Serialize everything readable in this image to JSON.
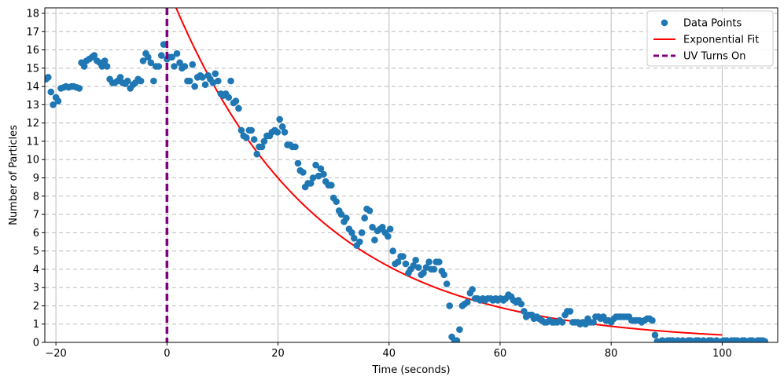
{
  "chart_data": {
    "type": "scatter",
    "title": "",
    "xlabel": "Time (seconds)",
    "ylabel": "Number of Particles",
    "xlim": [
      -22,
      110
    ],
    "ylim": [
      0,
      18.3
    ],
    "xticks": [
      -20,
      0,
      20,
      40,
      60,
      80,
      100
    ],
    "xtick_labels": [
      "−20",
      "0",
      "20",
      "40",
      "60",
      "80",
      "100"
    ],
    "yticks": [
      0,
      1,
      2,
      3,
      4,
      5,
      6,
      7,
      8,
      9,
      10,
      11,
      12,
      13,
      14,
      15,
      16,
      17,
      18
    ],
    "grid": {
      "x": "solid-major",
      "y": "dashed"
    },
    "legend": {
      "placement": "top-right",
      "entries": [
        {
          "label": "Data Points",
          "kind": "marker",
          "color": "#1f77b4"
        },
        {
          "label": "Exponential Fit",
          "kind": "line",
          "color": "#ff0000"
        },
        {
          "label": "UV Turns On",
          "kind": "dashed-line",
          "color": "#800080"
        }
      ]
    },
    "series": [
      {
        "name": "Data Points",
        "type": "scatter",
        "color": "#1f77b4",
        "points": [
          [
            -21.8,
            14.4
          ],
          [
            -21.4,
            14.5
          ],
          [
            -20.9,
            13.7
          ],
          [
            -20.5,
            13.0
          ],
          [
            -20.0,
            13.4
          ],
          [
            -19.6,
            13.2
          ],
          [
            -19.1,
            13.9
          ],
          [
            -18.6,
            13.95
          ],
          [
            -18.2,
            14.0
          ],
          [
            -17.7,
            13.95
          ],
          [
            -17.2,
            14.0
          ],
          [
            -16.8,
            14.0
          ],
          [
            -16.3,
            13.95
          ],
          [
            -15.8,
            13.9
          ],
          [
            -15.4,
            15.3
          ],
          [
            -14.9,
            15.1
          ],
          [
            -14.5,
            15.4
          ],
          [
            -14.0,
            15.5
          ],
          [
            -13.5,
            15.6
          ],
          [
            -13.1,
            15.7
          ],
          [
            -12.6,
            15.4
          ],
          [
            -12.1,
            15.3
          ],
          [
            -11.7,
            15.1
          ],
          [
            -11.2,
            15.4
          ],
          [
            -10.8,
            15.1
          ],
          [
            -10.3,
            14.4
          ],
          [
            -9.8,
            14.2
          ],
          [
            -9.4,
            14.2
          ],
          [
            -8.9,
            14.3
          ],
          [
            -8.4,
            14.5
          ],
          [
            -8.0,
            14.2
          ],
          [
            -7.5,
            14.15
          ],
          [
            -7.1,
            14.3
          ],
          [
            -6.6,
            13.9
          ],
          [
            -6.1,
            14.1
          ],
          [
            -5.7,
            14.2
          ],
          [
            -5.2,
            14.4
          ],
          [
            -4.7,
            14.3
          ],
          [
            -4.3,
            15.4
          ],
          [
            -3.8,
            15.8
          ],
          [
            -3.4,
            15.6
          ],
          [
            -2.9,
            15.3
          ],
          [
            -2.4,
            14.3
          ],
          [
            -2.0,
            15.1
          ],
          [
            -1.5,
            15.1
          ],
          [
            -1.0,
            15.7
          ],
          [
            -0.6,
            16.3
          ],
          [
            0.0,
            15.5
          ],
          [
            0.4,
            15.6
          ],
          [
            0.9,
            15.6
          ],
          [
            1.3,
            15.1
          ],
          [
            1.8,
            15.8
          ],
          [
            2.3,
            15.3
          ],
          [
            2.7,
            15.0
          ],
          [
            3.2,
            15.1
          ],
          [
            3.7,
            14.3
          ],
          [
            4.1,
            14.3
          ],
          [
            4.6,
            15.2
          ],
          [
            5.0,
            14.0
          ],
          [
            5.5,
            14.5
          ],
          [
            6.0,
            14.6
          ],
          [
            6.4,
            14.5
          ],
          [
            6.9,
            14.1
          ],
          [
            7.4,
            14.6
          ],
          [
            7.8,
            14.4
          ],
          [
            8.3,
            14.2
          ],
          [
            8.7,
            14.7
          ],
          [
            9.2,
            14.3
          ],
          [
            9.7,
            13.6
          ],
          [
            10.1,
            13.5
          ],
          [
            10.6,
            13.6
          ],
          [
            11.1,
            13.4
          ],
          [
            11.5,
            14.3
          ],
          [
            12.0,
            13.1
          ],
          [
            12.4,
            13.2
          ],
          [
            12.9,
            12.8
          ],
          [
            13.4,
            11.6
          ],
          [
            13.8,
            11.3
          ],
          [
            14.3,
            11.2
          ],
          [
            14.8,
            11.6
          ],
          [
            15.2,
            11.6
          ],
          [
            15.7,
            11.1
          ],
          [
            16.2,
            10.3
          ],
          [
            16.6,
            10.7
          ],
          [
            17.1,
            10.7
          ],
          [
            17.5,
            11.0
          ],
          [
            18.0,
            11.3
          ],
          [
            18.5,
            11.3
          ],
          [
            18.9,
            11.5
          ],
          [
            19.4,
            11.6
          ],
          [
            19.9,
            11.5
          ],
          [
            20.3,
            12.2
          ],
          [
            20.8,
            11.8
          ],
          [
            21.2,
            11.5
          ],
          [
            21.7,
            10.8
          ],
          [
            22.2,
            10.8
          ],
          [
            22.6,
            10.7
          ],
          [
            23.1,
            10.7
          ],
          [
            23.6,
            9.8
          ],
          [
            24.0,
            9.4
          ],
          [
            24.5,
            9.3
          ],
          [
            24.9,
            8.5
          ],
          [
            25.4,
            8.7
          ],
          [
            25.9,
            8.7
          ],
          [
            26.3,
            9.0
          ],
          [
            26.8,
            9.7
          ],
          [
            27.3,
            9.1
          ],
          [
            27.7,
            9.5
          ],
          [
            28.2,
            9.2
          ],
          [
            28.6,
            8.8
          ],
          [
            29.1,
            8.6
          ],
          [
            29.6,
            8.6
          ],
          [
            30.0,
            7.9
          ],
          [
            30.5,
            7.7
          ],
          [
            31.0,
            7.2
          ],
          [
            31.4,
            7.0
          ],
          [
            31.9,
            6.6
          ],
          [
            32.3,
            6.8
          ],
          [
            32.8,
            6.2
          ],
          [
            33.3,
            6.0
          ],
          [
            33.7,
            5.7
          ],
          [
            34.2,
            5.3
          ],
          [
            34.7,
            5.5
          ],
          [
            35.1,
            6.0
          ],
          [
            35.6,
            6.8
          ],
          [
            36.0,
            7.3
          ],
          [
            36.5,
            7.2
          ],
          [
            37.0,
            6.3
          ],
          [
            37.4,
            5.6
          ],
          [
            37.9,
            6.1
          ],
          [
            38.4,
            6.2
          ],
          [
            38.8,
            6.3
          ],
          [
            39.3,
            6.0
          ],
          [
            39.8,
            5.8
          ],
          [
            40.2,
            6.2
          ],
          [
            40.7,
            5.0
          ],
          [
            41.1,
            4.3
          ],
          [
            41.6,
            4.4
          ],
          [
            42.1,
            4.7
          ],
          [
            42.5,
            4.7
          ],
          [
            43.0,
            4.3
          ],
          [
            43.5,
            3.8
          ],
          [
            43.9,
            4.0
          ],
          [
            44.4,
            4.2
          ],
          [
            44.8,
            4.5
          ],
          [
            45.3,
            4.1
          ],
          [
            45.8,
            3.7
          ],
          [
            46.2,
            3.8
          ],
          [
            46.7,
            4.1
          ],
          [
            47.2,
            4.4
          ],
          [
            47.6,
            4.0
          ],
          [
            48.1,
            4.0
          ],
          [
            48.5,
            4.4
          ],
          [
            49.0,
            4.4
          ],
          [
            49.5,
            3.9
          ],
          [
            49.9,
            3.7
          ],
          [
            50.4,
            3.2
          ],
          [
            50.9,
            2.0
          ],
          [
            51.3,
            0.3
          ],
          [
            51.8,
            0.1
          ],
          [
            52.2,
            0.1
          ],
          [
            52.7,
            0.7
          ],
          [
            53.2,
            2.0
          ],
          [
            53.6,
            2.1
          ],
          [
            54.1,
            2.2
          ],
          [
            54.6,
            2.7
          ],
          [
            55.0,
            2.9
          ],
          [
            55.5,
            2.4
          ],
          [
            55.9,
            2.4
          ],
          [
            56.4,
            2.3
          ],
          [
            56.9,
            2.4
          ],
          [
            57.3,
            2.3
          ],
          [
            57.8,
            2.4
          ],
          [
            58.3,
            2.4
          ],
          [
            58.7,
            2.3
          ],
          [
            59.2,
            2.4
          ],
          [
            59.6,
            2.3
          ],
          [
            60.1,
            2.4
          ],
          [
            60.6,
            2.3
          ],
          [
            61.0,
            2.4
          ],
          [
            61.5,
            2.6
          ],
          [
            62.0,
            2.5
          ],
          [
            62.4,
            2.3
          ],
          [
            62.9,
            2.2
          ],
          [
            63.3,
            2.3
          ],
          [
            63.8,
            2.1
          ],
          [
            64.3,
            1.7
          ],
          [
            64.7,
            1.4
          ],
          [
            65.2,
            1.5
          ],
          [
            65.7,
            1.5
          ],
          [
            66.1,
            1.3
          ],
          [
            66.6,
            1.4
          ],
          [
            67.0,
            1.3
          ],
          [
            67.5,
            1.2
          ],
          [
            68.0,
            1.1
          ],
          [
            68.4,
            1.1
          ],
          [
            68.9,
            1.2
          ],
          [
            69.4,
            1.1
          ],
          [
            69.8,
            1.1
          ],
          [
            70.3,
            1.1
          ],
          [
            70.7,
            1.2
          ],
          [
            71.2,
            1.1
          ],
          [
            71.7,
            1.5
          ],
          [
            72.1,
            1.7
          ],
          [
            72.6,
            1.7
          ],
          [
            73.1,
            1.1
          ],
          [
            73.5,
            1.1
          ],
          [
            74.0,
            1.1
          ],
          [
            74.4,
            1.0
          ],
          [
            74.9,
            1.1
          ],
          [
            75.4,
            1.0
          ],
          [
            75.8,
            1.3
          ],
          [
            76.3,
            1.1
          ],
          [
            76.8,
            1.1
          ],
          [
            77.2,
            1.4
          ],
          [
            77.7,
            1.4
          ],
          [
            78.1,
            1.3
          ],
          [
            78.6,
            1.4
          ],
          [
            79.1,
            1.2
          ],
          [
            79.5,
            1.2
          ],
          [
            80.0,
            1.1
          ],
          [
            80.5,
            1.3
          ],
          [
            80.9,
            1.4
          ],
          [
            81.4,
            1.4
          ],
          [
            81.8,
            1.4
          ],
          [
            82.3,
            1.4
          ],
          [
            82.8,
            1.4
          ],
          [
            83.2,
            1.4
          ],
          [
            83.7,
            1.2
          ],
          [
            84.2,
            1.2
          ],
          [
            84.6,
            1.2
          ],
          [
            85.1,
            1.2
          ],
          [
            85.5,
            1.1
          ],
          [
            86.0,
            1.2
          ],
          [
            86.5,
            1.3
          ],
          [
            86.9,
            1.3
          ],
          [
            87.4,
            1.2
          ],
          [
            87.9,
            0.4
          ],
          [
            88.3,
            0.05
          ],
          [
            88.8,
            0.0
          ],
          [
            89.2,
            0.1
          ],
          [
            89.7,
            0.05
          ],
          [
            90.2,
            0.1
          ],
          [
            90.6,
            0.1
          ],
          [
            91.1,
            0.1
          ],
          [
            91.6,
            0.05
          ],
          [
            92.0,
            0.1
          ],
          [
            92.5,
            0.0
          ],
          [
            92.9,
            0.1
          ],
          [
            93.4,
            0.05
          ],
          [
            93.9,
            0.1
          ],
          [
            94.3,
            0.1
          ],
          [
            94.8,
            0.05
          ],
          [
            95.3,
            0.1
          ],
          [
            95.7,
            0.1
          ],
          [
            96.2,
            0.05
          ],
          [
            96.6,
            0.1
          ],
          [
            97.1,
            0.05
          ],
          [
            97.6,
            0.1
          ],
          [
            98.0,
            0.1
          ],
          [
            98.5,
            0.05
          ],
          [
            99.0,
            0.1
          ],
          [
            99.4,
            0.0
          ],
          [
            99.9,
            0.05
          ],
          [
            100.3,
            0.1
          ],
          [
            100.8,
            0.1
          ],
          [
            101.3,
            0.05
          ],
          [
            101.7,
            0.1
          ],
          [
            102.2,
            0.1
          ],
          [
            102.7,
            0.1
          ],
          [
            103.1,
            0.05
          ],
          [
            103.6,
            0.1
          ],
          [
            104.0,
            0.1
          ],
          [
            104.5,
            0.05
          ],
          [
            105.0,
            0.1
          ],
          [
            105.4,
            0.1
          ],
          [
            105.9,
            0.05
          ],
          [
            106.4,
            0.1
          ],
          [
            106.8,
            0.1
          ],
          [
            107.3,
            0.1
          ],
          [
            107.7,
            0.05
          ]
        ]
      },
      {
        "name": "Exponential Fit",
        "type": "line",
        "color": "#ff0000",
        "model": {
          "a": 19.5,
          "b": 0.0387
        },
        "x_range": [
          0,
          100
        ]
      },
      {
        "name": "UV Turns On",
        "type": "vline",
        "color": "#800080",
        "x": 0
      }
    ]
  }
}
